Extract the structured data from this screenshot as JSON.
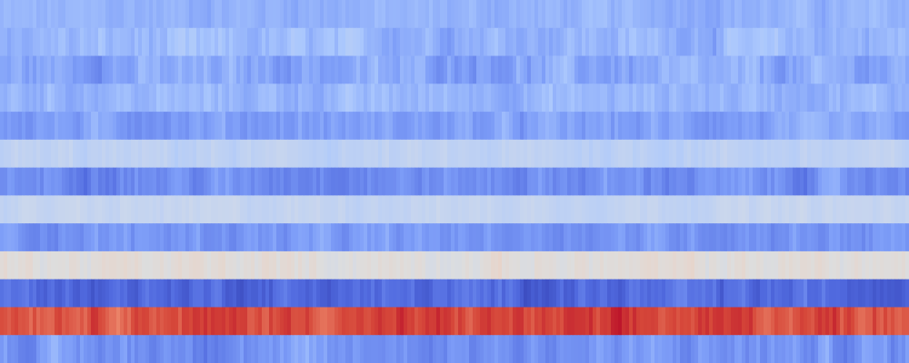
{
  "chart_data": {
    "type": "heatmap",
    "title": "",
    "xlabel": "",
    "ylabel": "",
    "colormap": "coolwarm",
    "color_range": [
      0.0,
      1.0
    ],
    "colors": {
      "low": "#3b4cc0",
      "mid": "#dddddd",
      "high": "#b40426"
    },
    "grid": false,
    "legend": "none",
    "n_columns": 250,
    "rows": [
      {
        "index": 0,
        "mean": 0.3,
        "spread": 0.02
      },
      {
        "index": 1,
        "mean": 0.31,
        "spread": 0.03
      },
      {
        "index": 2,
        "mean": 0.27,
        "spread": 0.035
      },
      {
        "index": 3,
        "mean": 0.31,
        "spread": 0.025
      },
      {
        "index": 4,
        "mean": 0.25,
        "spread": 0.03
      },
      {
        "index": 5,
        "mean": 0.4,
        "spread": 0.015
      },
      {
        "index": 6,
        "mean": 0.21,
        "spread": 0.035
      },
      {
        "index": 7,
        "mean": 0.42,
        "spread": 0.012
      },
      {
        "index": 8,
        "mean": 0.23,
        "spread": 0.03
      },
      {
        "index": 9,
        "mean": 0.51,
        "spread": 0.02
      },
      {
        "index": 10,
        "mean": 0.1,
        "spread": 0.04
      },
      {
        "index": 11,
        "mean": 0.88,
        "spread": 0.035
      },
      {
        "index": 12,
        "mean": 0.22,
        "spread": 0.04
      }
    ]
  }
}
